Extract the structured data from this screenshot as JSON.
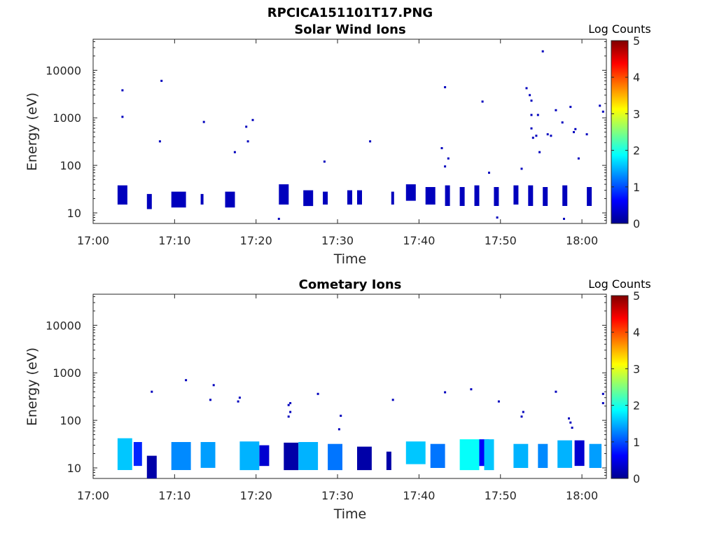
{
  "figure": {
    "title": "RPCICA151101T17.PNG"
  },
  "colorbar_ticks": [
    "0",
    "1",
    "2",
    "3",
    "4",
    "5"
  ],
  "chart_data": [
    {
      "type": "heatmap",
      "title": "Solar Wind Ions",
      "xlabel": "Time",
      "ylabel": "Energy (eV)",
      "colorbar_label": "Log Counts",
      "colorbar_range": [
        0,
        5
      ],
      "colormap": "jet",
      "yscale": "log",
      "ylim": [
        6,
        45000
      ],
      "xlim": [
        "17:00",
        "18:03"
      ],
      "x_ticks": [
        "17:00",
        "17:10",
        "17:20",
        "17:30",
        "17:40",
        "17:50",
        "18:00"
      ],
      "y_ticks": [
        "10",
        "100",
        "1000",
        "10000"
      ],
      "points": [
        [
          "17:03.6",
          3800,
          0.3
        ],
        [
          "17:03.6",
          1050,
          0.3
        ],
        [
          "17:08.2",
          320,
          0.3
        ],
        [
          "17:08.4",
          6000,
          0.3
        ],
        [
          "17:13.6",
          820,
          0.3
        ],
        [
          "17:17.4",
          190,
          0.3
        ],
        [
          "17:18.8",
          650,
          0.3
        ],
        [
          "17:19.0",
          320,
          0.3
        ],
        [
          "17:19.6",
          900,
          0.3
        ],
        [
          "17:28.4",
          120,
          0.3
        ],
        [
          "17:34.0",
          320,
          0.3
        ],
        [
          "17:42.8",
          230,
          0.3
        ],
        [
          "17:43.2",
          4400,
          0.3
        ],
        [
          "17:43.6",
          140,
          0.3
        ],
        [
          "17:43.2",
          95,
          0.3
        ],
        [
          "17:47.8",
          2200,
          0.3
        ],
        [
          "17:48.6",
          70,
          0.3
        ],
        [
          "17:52.6",
          85,
          0.3
        ],
        [
          "17:53.2",
          4200,
          0.3
        ],
        [
          "17:53.6",
          3000,
          0.3
        ],
        [
          "17:53.8",
          2300,
          0.3
        ],
        [
          "17:53.8",
          1150,
          0.3
        ],
        [
          "17:53.8",
          600,
          0.3
        ],
        [
          "17:54.0",
          380,
          0.3
        ],
        [
          "17:54.4",
          420,
          0.3
        ],
        [
          "17:54.6",
          1150,
          0.3
        ],
        [
          "17:54.8",
          190,
          0.3
        ],
        [
          "17:55.2",
          25000,
          0.3
        ],
        [
          "17:55.8",
          450,
          0.3
        ],
        [
          "17:56.2",
          420,
          0.3
        ],
        [
          "17:56.8",
          1450,
          0.3
        ],
        [
          "17:57.6",
          800,
          0.3
        ],
        [
          "17:58.6",
          1700,
          0.3
        ],
        [
          "17:59.0",
          500,
          0.3
        ],
        [
          "17:59.2",
          580,
          0.3
        ],
        [
          "17:59.6",
          140,
          0.3
        ],
        [
          "18:00.6",
          450,
          0.3
        ],
        [
          "18:02.2",
          1800,
          0.3
        ],
        [
          "18:02.6",
          1350,
          0.3
        ],
        [
          "17:22.8",
          7.5,
          0.3
        ],
        [
          "17:49.6",
          8,
          0.3
        ],
        [
          "17:57.8",
          7.5,
          0.3
        ]
      ],
      "low_energy_bursts": [
        {
          "t0": 17.05,
          "t1": 17.07,
          "e_lo": 15,
          "e_hi": 38,
          "level": 0.3
        },
        {
          "t0": 17.11,
          "t1": 17.12,
          "e_lo": 12,
          "e_hi": 25,
          "level": 0.3
        },
        {
          "t0": 17.16,
          "t1": 17.19,
          "e_lo": 13,
          "e_hi": 28,
          "level": 0.3
        },
        {
          "t0": 17.22,
          "t1": 17.225,
          "e_lo": 15,
          "e_hi": 25,
          "level": 0.3
        },
        {
          "t0": 17.27,
          "t1": 17.29,
          "e_lo": 13,
          "e_hi": 28,
          "level": 0.3
        },
        {
          "t0": 17.38,
          "t1": 17.4,
          "e_lo": 15,
          "e_hi": 40,
          "level": 0.3
        },
        {
          "t0": 17.43,
          "t1": 17.45,
          "e_lo": 14,
          "e_hi": 30,
          "level": 0.3
        },
        {
          "t0": 17.47,
          "t1": 17.48,
          "e_lo": 15,
          "e_hi": 28,
          "level": 0.3
        },
        {
          "t0": 17.52,
          "t1": 17.53,
          "e_lo": 15,
          "e_hi": 30,
          "level": 0.3
        },
        {
          "t0": 17.54,
          "t1": 17.55,
          "e_lo": 15,
          "e_hi": 30,
          "level": 0.3
        },
        {
          "t0": 17.61,
          "t1": 17.61,
          "e_lo": 15,
          "e_hi": 28,
          "level": 0.3
        },
        {
          "t0": 17.64,
          "t1": 17.66,
          "e_lo": 18,
          "e_hi": 40,
          "level": 0.3
        },
        {
          "t0": 17.68,
          "t1": 17.7,
          "e_lo": 15,
          "e_hi": 35,
          "level": 0.3
        },
        {
          "t0": 17.72,
          "t1": 17.73,
          "e_lo": 14,
          "e_hi": 38,
          "level": 0.3
        },
        {
          "t0": 17.75,
          "t1": 17.76,
          "e_lo": 14,
          "e_hi": 35,
          "level": 0.3
        },
        {
          "t0": 17.78,
          "t1": 17.79,
          "e_lo": 14,
          "e_hi": 38,
          "level": 0.3
        },
        {
          "t0": 17.82,
          "t1": 17.83,
          "e_lo": 14,
          "e_hi": 35,
          "level": 0.3
        },
        {
          "t0": 17.86,
          "t1": 17.87,
          "e_lo": 15,
          "e_hi": 38,
          "level": 0.3
        },
        {
          "t0": 17.89,
          "t1": 17.9,
          "e_lo": 14,
          "e_hi": 38,
          "level": 0.3
        },
        {
          "t0": 17.92,
          "t1": 17.93,
          "e_lo": 14,
          "e_hi": 35,
          "level": 0.3
        },
        {
          "t0": 17.96,
          "t1": 17.97,
          "e_lo": 14,
          "e_hi": 38,
          "level": 0.3
        },
        {
          "t0": 18.01,
          "t1": 18.02,
          "e_lo": 14,
          "e_hi": 35,
          "level": 0.3
        }
      ]
    },
    {
      "type": "heatmap",
      "title": "Cometary Ions",
      "xlabel": "Time",
      "ylabel": "Energy (eV)",
      "colorbar_label": "Log Counts",
      "colorbar_range": [
        0,
        5
      ],
      "colormap": "jet",
      "yscale": "log",
      "ylim": [
        6,
        45000
      ],
      "xlim": [
        "17:00",
        "18:03"
      ],
      "x_ticks": [
        "17:00",
        "17:10",
        "17:20",
        "17:30",
        "17:40",
        "17:50",
        "18:00"
      ],
      "y_ticks": [
        "10",
        "100",
        "1000",
        "10000"
      ],
      "points": [
        [
          "17:07.2",
          400,
          0.3
        ],
        [
          "17:11.4",
          700,
          0.3
        ],
        [
          "17:14.4",
          270,
          0.3
        ],
        [
          "17:14.8",
          550,
          0.3
        ],
        [
          "17:17.8",
          250,
          0.3
        ],
        [
          "17:18.0",
          300,
          0.3
        ],
        [
          "17:24.0",
          210,
          0.3
        ],
        [
          "17:24.2",
          230,
          0.3
        ],
        [
          "17:24.0",
          120,
          0.3
        ],
        [
          "17:24.2",
          150,
          0.3
        ],
        [
          "17:27.6",
          360,
          0.3
        ],
        [
          "17:30.2",
          65,
          0.3
        ],
        [
          "17:30.4",
          125,
          0.3
        ],
        [
          "17:36.8",
          270,
          0.3
        ],
        [
          "17:43.2",
          390,
          0.3
        ],
        [
          "17:46.4",
          450,
          0.3
        ],
        [
          "17:49.8",
          250,
          0.3
        ],
        [
          "17:52.6",
          120,
          0.3
        ],
        [
          "17:52.8",
          150,
          0.3
        ],
        [
          "17:56.8",
          400,
          0.3
        ],
        [
          "17:58.4",
          110,
          0.3
        ],
        [
          "17:58.6",
          90,
          0.3
        ],
        [
          "17:58.8",
          70,
          0.3
        ],
        [
          "18:02.6",
          360,
          0.3
        ],
        [
          "18:02.6",
          230,
          0.3
        ]
      ],
      "low_energy_bursts": [
        {
          "t0": 17.05,
          "t1": 17.08,
          "e_lo": 9,
          "e_hi": 42,
          "level": 1.6
        },
        {
          "t0": 17.083,
          "t1": 17.1,
          "e_lo": 11,
          "e_hi": 35,
          "level": 0.8
        },
        {
          "t0": 17.11,
          "t1": 17.13,
          "e_lo": 6,
          "e_hi": 18,
          "level": 0.2
        },
        {
          "t0": 17.16,
          "t1": 17.2,
          "e_lo": 9,
          "e_hi": 35,
          "level": 1.3
        },
        {
          "t0": 17.22,
          "t1": 17.25,
          "e_lo": 10,
          "e_hi": 35,
          "level": 1.4
        },
        {
          "t0": 17.3,
          "t1": 17.34,
          "e_lo": 9,
          "e_hi": 36,
          "level": 1.5
        },
        {
          "t0": 17.34,
          "t1": 17.36,
          "e_lo": 11,
          "e_hi": 30,
          "level": 0.4
        },
        {
          "t0": 17.39,
          "t1": 17.42,
          "e_lo": 9,
          "e_hi": 34,
          "level": 0.2
        },
        {
          "t0": 17.42,
          "t1": 17.46,
          "e_lo": 9,
          "e_hi": 35,
          "level": 1.5
        },
        {
          "t0": 17.48,
          "t1": 17.51,
          "e_lo": 9,
          "e_hi": 32,
          "level": 1.2
        },
        {
          "t0": 17.54,
          "t1": 17.57,
          "e_lo": 9,
          "e_hi": 28,
          "level": 0.2
        },
        {
          "t0": 17.6,
          "t1": 17.61,
          "e_lo": 9,
          "e_hi": 22,
          "level": 0.2
        },
        {
          "t0": 17.64,
          "t1": 17.68,
          "e_lo": 12,
          "e_hi": 36,
          "level": 1.6
        },
        {
          "t0": 17.69,
          "t1": 17.72,
          "e_lo": 10,
          "e_hi": 32,
          "level": 1.2
        },
        {
          "t0": 17.75,
          "t1": 17.79,
          "e_lo": 9,
          "e_hi": 40,
          "level": 1.9
        },
        {
          "t0": 17.79,
          "t1": 17.81,
          "e_lo": 11,
          "e_hi": 40,
          "level": 0.6
        },
        {
          "t0": 17.8,
          "t1": 17.82,
          "e_lo": 9,
          "e_hi": 40,
          "level": 1.6
        },
        {
          "t0": 17.86,
          "t1": 17.89,
          "e_lo": 10,
          "e_hi": 32,
          "level": 1.5
        },
        {
          "t0": 17.91,
          "t1": 17.93,
          "e_lo": 10,
          "e_hi": 32,
          "level": 1.3
        },
        {
          "t0": 17.95,
          "t1": 17.98,
          "e_lo": 10,
          "e_hi": 38,
          "level": 1.5
        },
        {
          "t0": 17.985,
          "t1": 18.005,
          "e_lo": 11,
          "e_hi": 38,
          "level": 0.4
        },
        {
          "t0": 18.015,
          "t1": 18.04,
          "e_lo": 10,
          "e_hi": 32,
          "level": 1.4
        }
      ]
    }
  ]
}
